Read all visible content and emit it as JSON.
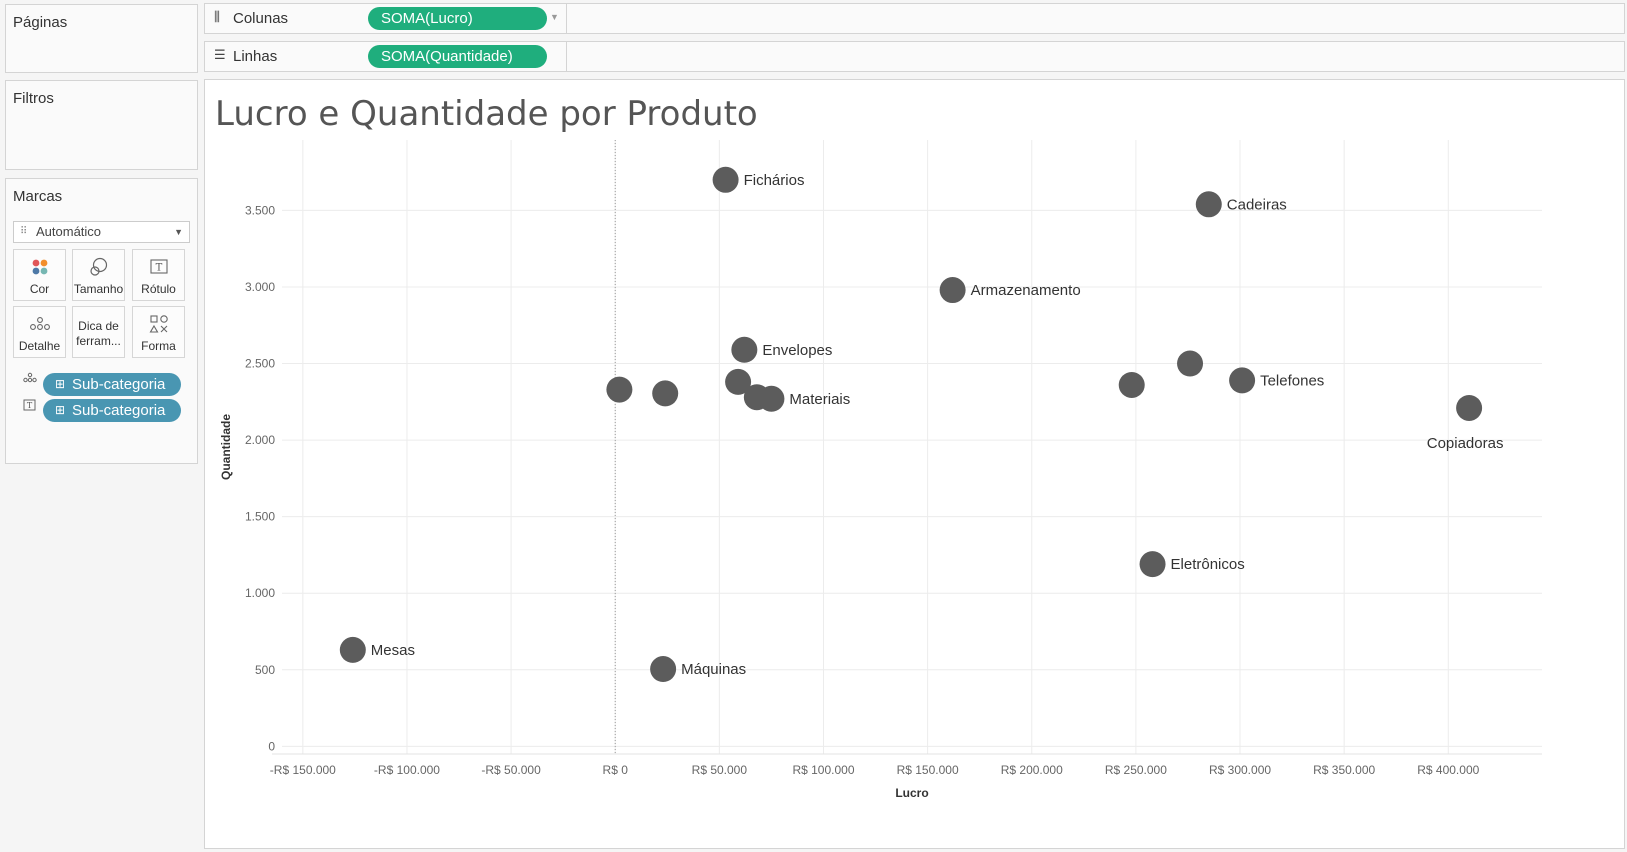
{
  "left_panel": {
    "paginas": "Páginas",
    "filtros": "Filtros",
    "marcas": {
      "title": "Marcas",
      "mark_type": "Automático",
      "buttons": {
        "cor": "Cor",
        "tamanho": "Tamanho",
        "rotulo": "Rótulo",
        "detalhe": "Detalhe",
        "dica": "Dica de ferram...",
        "forma": "Forma"
      },
      "pills": [
        {
          "label": "Sub-categoria",
          "role": "detail"
        },
        {
          "label": "Sub-categoria",
          "role": "label"
        }
      ]
    }
  },
  "shelves": {
    "colunas": {
      "label": "Colunas",
      "pill": "SOMA(Lucro)"
    },
    "linhas": {
      "label": "Linhas",
      "pill": "SOMA(Quantidade)"
    }
  },
  "viz": {
    "title": "Lucro e Quantidade por Produto"
  },
  "colors": {
    "mark": "#5c5c5c",
    "pill_measure": "#1fae7d",
    "pill_dimension": "#4996b2",
    "grid": "#ececec"
  },
  "chart_data": {
    "type": "scatter",
    "xlabel": "Lucro",
    "ylabel": "Quantidade",
    "xlim": [
      -160000,
      445000
    ],
    "ylim": [
      -50,
      3960
    ],
    "x_ticks": [
      -150000,
      -100000,
      -50000,
      0,
      50000,
      100000,
      150000,
      200000,
      250000,
      300000,
      350000,
      400000
    ],
    "x_tick_labels": [
      "-R$ 150.000",
      "-R$ 100.000",
      "-R$ 50.000",
      "R$ 0",
      "R$ 50.000",
      "R$ 100.000",
      "R$ 150.000",
      "R$ 200.000",
      "R$ 250.000",
      "R$ 300.000",
      "R$ 350.000",
      "R$ 400.000"
    ],
    "y_ticks": [
      0,
      500,
      1000,
      1500,
      2000,
      2500,
      3000,
      3500
    ],
    "y_tick_labels": [
      "0",
      "500",
      "1.000",
      "1.500",
      "2.000",
      "2.500",
      "3.000",
      "3.500"
    ],
    "grid": true,
    "points": [
      {
        "label": "Fichários",
        "x": 53000,
        "y": 3700,
        "label_pos": "right"
      },
      {
        "label": "Cadeiras",
        "x": 285000,
        "y": 3540,
        "label_pos": "right"
      },
      {
        "label": "Armazenamento",
        "x": 162000,
        "y": 2980,
        "label_pos": "right"
      },
      {
        "label": "Envelopes",
        "x": 62000,
        "y": 2590,
        "label_pos": "right"
      },
      {
        "label": "",
        "x": 2000,
        "y": 2330,
        "label_pos": "right"
      },
      {
        "label": "",
        "x": 24000,
        "y": 2305,
        "label_pos": "right"
      },
      {
        "label": "",
        "x": 59000,
        "y": 2380,
        "label_pos": "right"
      },
      {
        "label": "",
        "x": 68000,
        "y": 2280,
        "label_pos": "right"
      },
      {
        "label": "Materiais",
        "x": 75000,
        "y": 2270,
        "label_pos": "right"
      },
      {
        "label": "",
        "x": 248000,
        "y": 2360,
        "label_pos": "right"
      },
      {
        "label": "",
        "x": 276000,
        "y": 2500,
        "label_pos": "right"
      },
      {
        "label": "Telefones",
        "x": 301000,
        "y": 2390,
        "label_pos": "right"
      },
      {
        "label": "Copiadoras",
        "x": 410000,
        "y": 2210,
        "label_pos": "below"
      },
      {
        "label": "Eletrônicos",
        "x": 258000,
        "y": 1190,
        "label_pos": "right"
      },
      {
        "label": "Mesas",
        "x": 126000,
        "y": 630,
        "label_pos": "right",
        "negative": true
      },
      {
        "label": "Máquinas",
        "x": 23000,
        "y": 505,
        "label_pos": "right"
      }
    ]
  }
}
